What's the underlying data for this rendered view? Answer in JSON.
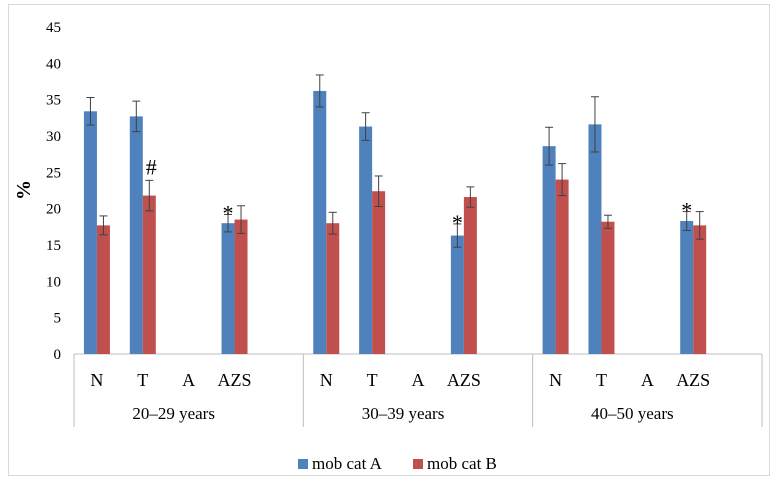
{
  "chart_data": {
    "type": "bar",
    "title": "",
    "ylabel": "%",
    "xlabel": "",
    "ylim": [
      0,
      45
    ],
    "yticks": [
      0,
      5,
      10,
      15,
      20,
      25,
      30,
      35,
      40,
      45
    ],
    "grid": false,
    "legend_position": "bottom",
    "groups": [
      "20–29 years",
      "30–39 years",
      "40–50 years"
    ],
    "categories": [
      "N",
      "T",
      "A",
      "AZS"
    ],
    "series": [
      {
        "name": "mob cat A",
        "color": "#4f81bd",
        "values": [
          [
            33.4,
            32.7,
            0,
            18.0
          ],
          [
            36.2,
            31.3,
            0,
            16.3
          ],
          [
            28.6,
            31.6,
            0,
            18.3
          ]
        ],
        "errors": [
          [
            1.9,
            2.1,
            0,
            1.2
          ],
          [
            2.2,
            1.9,
            0,
            1.6
          ],
          [
            2.6,
            3.8,
            0,
            1.3
          ]
        ]
      },
      {
        "name": "mob cat B",
        "color": "#c0504d",
        "values": [
          [
            17.7,
            21.8,
            0,
            18.5
          ],
          [
            18.0,
            22.4,
            0,
            21.6
          ],
          [
            24.0,
            18.2,
            0,
            17.7
          ]
        ],
        "errors": [
          [
            1.3,
            2.1,
            0,
            1.9
          ],
          [
            1.5,
            2.1,
            0,
            1.4
          ],
          [
            2.2,
            0.9,
            0,
            1.9
          ]
        ]
      }
    ],
    "annotations": [
      {
        "group": 0,
        "category": 1,
        "series": 1,
        "text": "#"
      },
      {
        "group": 0,
        "category": 3,
        "series": 0,
        "text": "*"
      },
      {
        "group": 1,
        "category": 3,
        "series": 0,
        "text": "*"
      },
      {
        "group": 2,
        "category": 3,
        "series": 0,
        "text": "*"
      }
    ]
  }
}
